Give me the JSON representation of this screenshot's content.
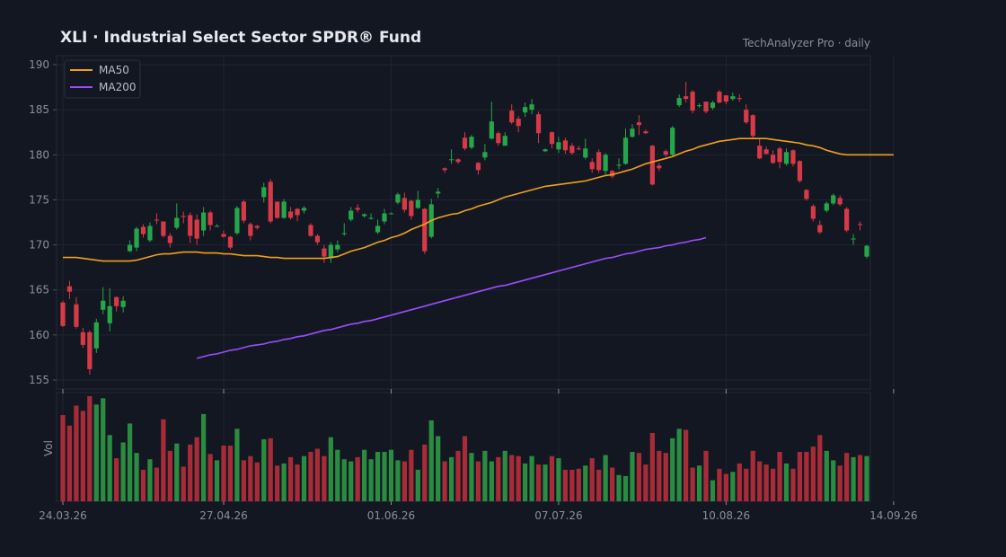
{
  "header": {
    "title": "XLI  ·  Industrial Select Sector SPDR® Fund",
    "brand": "TechAnalyzer Pro · daily"
  },
  "colors": {
    "background": "#131722",
    "grid": "#1f2430",
    "up": "#26a64a",
    "down": "#d63a47",
    "ma50": "#f0a020",
    "ma200": "#9b4dff",
    "axis_text": "#8a8f9c"
  },
  "chart_data": {
    "type": "candlestick",
    "title": "XLI  ·  Industrial Select Sector SPDR® Fund",
    "y_ticks": [
      155,
      160,
      165,
      170,
      175,
      180,
      185,
      190
    ],
    "ylim": [
      154,
      191
    ],
    "ylabel_volume": "Vol",
    "x_ticks": [
      {
        "label": "24.03.26",
        "index": 0
      },
      {
        "label": "27.04.26",
        "index": 24
      },
      {
        "label": "01.06.26",
        "index": 49
      },
      {
        "label": "07.07.26",
        "index": 74
      },
      {
        "label": "10.08.26",
        "index": 99
      },
      {
        "label": "14.09.26",
        "index": 124
      }
    ],
    "legend": {
      "placement": "top-left",
      "entries": [
        "MA50",
        "MA200"
      ]
    },
    "candles": [
      [
        163.6,
        161.0,
        163.8,
        160.9,
        0.82
      ],
      [
        165.4,
        164.8,
        166.0,
        164.0,
        0.72
      ],
      [
        163.4,
        160.9,
        164.2,
        160.7,
        0.91
      ],
      [
        160.3,
        158.9,
        160.8,
        158.6,
        0.86
      ],
      [
        160.3,
        156.2,
        160.5,
        155.6,
        1.0
      ],
      [
        158.5,
        161.4,
        161.8,
        158.0,
        0.92
      ],
      [
        162.8,
        163.8,
        165.3,
        162.3,
        0.98
      ],
      [
        161.3,
        163.2,
        165.2,
        160.4,
        0.63
      ],
      [
        164.2,
        163.2,
        164.3,
        162.6,
        0.41
      ],
      [
        163.1,
        163.8,
        164.3,
        162.5,
        0.56
      ],
      [
        169.3,
        170.0,
        170.5,
        169.2,
        0.74
      ],
      [
        169.7,
        171.8,
        172.0,
        169.3,
        0.46
      ],
      [
        172.0,
        171.2,
        172.3,
        170.8,
        0.3
      ],
      [
        170.5,
        172.1,
        172.5,
        170.3,
        0.4
      ],
      [
        172.8,
        172.7,
        173.5,
        172.3,
        0.32
      ],
      [
        172.6,
        171.0,
        172.6,
        170.8,
        0.78
      ],
      [
        171.0,
        170.2,
        171.3,
        169.7,
        0.48
      ],
      [
        171.9,
        173.0,
        174.6,
        171.7,
        0.55
      ],
      [
        173.2,
        173.1,
        173.7,
        172.4,
        0.33
      ],
      [
        173.3,
        171.0,
        173.6,
        170.2,
        0.54
      ],
      [
        172.8,
        170.7,
        173.4,
        170.0,
        0.61
      ],
      [
        171.6,
        173.6,
        174.2,
        171.0,
        0.83
      ],
      [
        173.6,
        172.2,
        173.8,
        171.6,
        0.45
      ],
      [
        172.1,
        172.1,
        172.3,
        172.0,
        0.39
      ],
      [
        171.2,
        170.9,
        171.6,
        170.8,
        0.53
      ],
      [
        170.9,
        169.7,
        171.0,
        169.5,
        0.53
      ],
      [
        171.3,
        174.1,
        174.3,
        171.1,
        0.69
      ],
      [
        174.8,
        172.7,
        175.0,
        172.4,
        0.39
      ],
      [
        172.3,
        171.0,
        172.5,
        170.5,
        0.43
      ],
      [
        172.1,
        171.9,
        172.2,
        171.7,
        0.37
      ],
      [
        175.3,
        176.4,
        176.9,
        174.7,
        0.59
      ],
      [
        177.0,
        172.6,
        177.3,
        172.4,
        0.6
      ],
      [
        174.8,
        173.0,
        174.8,
        172.9,
        0.34
      ],
      [
        173.0,
        174.8,
        175.1,
        172.9,
        0.36
      ],
      [
        173.7,
        173.0,
        174.2,
        172.8,
        0.42
      ],
      [
        174.0,
        173.3,
        174.1,
        172.6,
        0.35
      ],
      [
        173.8,
        174.1,
        174.3,
        173.5,
        0.43
      ],
      [
        172.2,
        171.0,
        172.4,
        170.9,
        0.47
      ],
      [
        171.0,
        170.3,
        171.2,
        170.0,
        0.5
      ],
      [
        169.6,
        168.7,
        170.0,
        168.0,
        0.43
      ],
      [
        168.5,
        170.0,
        170.3,
        168.0,
        0.61
      ],
      [
        169.5,
        170.0,
        170.5,
        169.2,
        0.49
      ],
      [
        171.3,
        171.3,
        172.4,
        171.0,
        0.4
      ],
      [
        172.8,
        173.8,
        174.2,
        172.6,
        0.38
      ],
      [
        174.1,
        173.9,
        174.5,
        173.6,
        0.42
      ],
      [
        173.2,
        173.4,
        173.5,
        173.0,
        0.49
      ],
      [
        172.9,
        173.0,
        173.5,
        172.8,
        0.4
      ],
      [
        171.4,
        172.1,
        172.8,
        171.2,
        0.47
      ],
      [
        172.6,
        173.5,
        174.0,
        172.3,
        0.47
      ],
      [
        173.5,
        173.5,
        173.6,
        173.4,
        0.49
      ],
      [
        174.7,
        175.6,
        175.8,
        174.5,
        0.39
      ],
      [
        175.2,
        173.9,
        175.8,
        173.6,
        0.38
      ],
      [
        174.9,
        173.2,
        175.0,
        172.8,
        0.49
      ],
      [
        174.1,
        175.0,
        176.0,
        174.0,
        0.3
      ],
      [
        174.0,
        169.3,
        174.1,
        169.0,
        0.54
      ],
      [
        170.9,
        174.5,
        175.1,
        170.7,
        0.77
      ],
      [
        175.7,
        175.9,
        176.3,
        175.2,
        0.62
      ],
      [
        178.5,
        178.3,
        178.6,
        178.0,
        0.38
      ],
      [
        179.4,
        179.5,
        180.6,
        179.0,
        0.42
      ],
      [
        179.5,
        179.2,
        179.6,
        179.0,
        0.48
      ],
      [
        181.9,
        180.7,
        182.5,
        180.5,
        0.62
      ],
      [
        180.8,
        182.0,
        182.2,
        180.6,
        0.46
      ],
      [
        179.1,
        178.3,
        179.2,
        177.8,
        0.38
      ],
      [
        179.7,
        180.3,
        181.2,
        179.4,
        0.48
      ],
      [
        181.8,
        183.7,
        185.9,
        181.7,
        0.38
      ],
      [
        182.4,
        181.3,
        182.6,
        181.0,
        0.42
      ],
      [
        181.0,
        182.1,
        182.5,
        181.2,
        0.48
      ],
      [
        184.9,
        183.6,
        185.6,
        183.4,
        0.44
      ],
      [
        184.0,
        183.2,
        184.3,
        182.5,
        0.43
      ],
      [
        184.7,
        185.3,
        185.8,
        184.2,
        0.36
      ],
      [
        185.0,
        185.6,
        186.2,
        184.5,
        0.43
      ],
      [
        184.5,
        182.4,
        184.8,
        181.3,
        0.35
      ],
      [
        180.4,
        180.6,
        180.7,
        180.3,
        0.35
      ],
      [
        182.5,
        181.2,
        182.6,
        180.7,
        0.43
      ],
      [
        180.6,
        181.4,
        182.0,
        180.2,
        0.41
      ],
      [
        181.6,
        180.5,
        181.9,
        180.1,
        0.3
      ],
      [
        181.0,
        180.2,
        181.3,
        180.0,
        0.3
      ],
      [
        180.7,
        180.6,
        181.0,
        180.5,
        0.31
      ],
      [
        179.7,
        180.7,
        181.8,
        179.5,
        0.34
      ],
      [
        179.2,
        178.4,
        179.6,
        178.0,
        0.41
      ],
      [
        180.3,
        178.3,
        180.6,
        178.0,
        0.3
      ],
      [
        178.2,
        180.0,
        180.2,
        177.8,
        0.44
      ],
      [
        178.2,
        177.6,
        178.3,
        177.4,
        0.32
      ],
      [
        178.8,
        178.9,
        179.6,
        178.4,
        0.25
      ],
      [
        179.0,
        181.9,
        182.9,
        178.9,
        0.24
      ],
      [
        182.0,
        182.9,
        183.4,
        181.9,
        0.47
      ],
      [
        183.6,
        183.3,
        184.4,
        182.2,
        0.46
      ],
      [
        182.6,
        182.4,
        182.8,
        182.3,
        0.35
      ],
      [
        181.0,
        176.7,
        181.1,
        176.6,
        0.65
      ],
      [
        178.8,
        178.5,
        179.1,
        178.2,
        0.48
      ],
      [
        180.4,
        180.0,
        180.6,
        179.8,
        0.46
      ],
      [
        180.0,
        183.0,
        183.2,
        179.8,
        0.6
      ],
      [
        185.5,
        186.3,
        186.7,
        185.3,
        0.69
      ],
      [
        186.5,
        186.2,
        188.1,
        185.8,
        0.68
      ],
      [
        187.0,
        184.9,
        187.2,
        184.6,
        0.32
      ],
      [
        185.4,
        185.5,
        185.7,
        185.2,
        0.34
      ],
      [
        185.9,
        184.8,
        185.8,
        184.6,
        0.48
      ],
      [
        185.2,
        185.8,
        186.0,
        185.0,
        0.2
      ],
      [
        187.0,
        185.8,
        187.2,
        185.7,
        0.31
      ],
      [
        186.6,
        185.9,
        186.6,
        185.6,
        0.26
      ],
      [
        186.2,
        186.5,
        186.9,
        186.0,
        0.28
      ],
      [
        186.3,
        186.2,
        186.7,
        185.9,
        0.36
      ],
      [
        185.0,
        183.6,
        185.6,
        183.4,
        0.31
      ],
      [
        184.4,
        182.1,
        184.5,
        181.8,
        0.48
      ],
      [
        181.0,
        179.6,
        181.8,
        179.5,
        0.38
      ],
      [
        180.6,
        180.1,
        180.9,
        180.0,
        0.35
      ],
      [
        180.0,
        179.1,
        180.5,
        179.0,
        0.31
      ],
      [
        180.7,
        179.2,
        180.9,
        178.5,
        0.47
      ],
      [
        179.0,
        180.3,
        180.7,
        178.8,
        0.36
      ],
      [
        180.5,
        179.0,
        180.6,
        178.7,
        0.31
      ],
      [
        179.3,
        177.1,
        179.4,
        176.9,
        0.47
      ],
      [
        176.1,
        175.1,
        176.2,
        174.9,
        0.47
      ],
      [
        174.3,
        172.9,
        174.5,
        172.6,
        0.52
      ],
      [
        172.2,
        171.4,
        172.7,
        171.2,
        0.63
      ],
      [
        173.8,
        174.6,
        174.8,
        173.6,
        0.48
      ],
      [
        174.6,
        175.5,
        175.7,
        174.4,
        0.39
      ],
      [
        175.2,
        174.5,
        175.5,
        174.3,
        0.34
      ],
      [
        174.0,
        171.6,
        174.2,
        171.4,
        0.46
      ],
      [
        170.7,
        170.7,
        171.2,
        170.0,
        0.42
      ],
      [
        172.3,
        172.2,
        172.6,
        171.6,
        0.44
      ],
      [
        168.7,
        169.9,
        170.0,
        168.5,
        0.43
      ]
    ],
    "ma50": [
      168.6,
      168.6,
      168.6,
      168.5,
      168.4,
      168.3,
      168.2,
      168.2,
      168.2,
      168.2,
      168.2,
      168.3,
      168.5,
      168.7,
      168.9,
      169.0,
      169.0,
      169.1,
      169.2,
      169.2,
      169.2,
      169.1,
      169.1,
      169.1,
      169.0,
      169.0,
      168.9,
      168.8,
      168.8,
      168.8,
      168.7,
      168.6,
      168.6,
      168.5,
      168.5,
      168.5,
      168.5,
      168.5,
      168.5,
      168.5,
      168.6,
      168.7,
      169.0,
      169.3,
      169.5,
      169.7,
      170.0,
      170.3,
      170.5,
      170.8,
      171.0,
      171.3,
      171.7,
      172.0,
      172.3,
      172.7,
      173.0,
      173.2,
      173.4,
      173.5,
      173.8,
      174.0,
      174.3,
      174.5,
      174.7,
      175.0,
      175.3,
      175.5,
      175.7,
      175.9,
      176.1,
      176.3,
      176.5,
      176.6,
      176.7,
      176.8,
      176.9,
      177.0,
      177.1,
      177.3,
      177.5,
      177.7,
      177.8,
      178.0,
      178.2,
      178.4,
      178.7,
      179.0,
      179.2,
      179.4,
      179.6,
      179.8,
      180.1,
      180.4,
      180.6,
      180.9,
      181.1,
      181.3,
      181.5,
      181.6,
      181.7,
      181.8,
      181.8,
      181.8,
      181.8,
      181.8,
      181.7,
      181.6,
      181.5,
      181.4,
      181.3,
      181.1,
      181.0,
      180.8,
      180.5,
      180.3,
      180.1,
      180.0,
      180.0,
      180.0,
      180.0,
      180.0,
      180.0,
      180.0,
      180.0
    ],
    "ma200_start_index": 20,
    "ma200": [
      157.4,
      157.6,
      157.8,
      157.9,
      158.1,
      158.3,
      158.4,
      158.6,
      158.8,
      158.9,
      159.0,
      159.2,
      159.3,
      159.5,
      159.6,
      159.8,
      159.9,
      160.1,
      160.3,
      160.5,
      160.6,
      160.8,
      161.0,
      161.2,
      161.3,
      161.5,
      161.6,
      161.8,
      162.0,
      162.2,
      162.4,
      162.6,
      162.8,
      163.0,
      163.2,
      163.4,
      163.6,
      163.8,
      164.0,
      164.2,
      164.4,
      164.6,
      164.8,
      165.0,
      165.2,
      165.4,
      165.5,
      165.7,
      165.9,
      166.1,
      166.3,
      166.5,
      166.7,
      166.9,
      167.1,
      167.3,
      167.5,
      167.7,
      167.9,
      168.1,
      168.3,
      168.5,
      168.6,
      168.8,
      169.0,
      169.1,
      169.3,
      169.5,
      169.6,
      169.7,
      169.9,
      170.0,
      170.2,
      170.3,
      170.5,
      170.6,
      170.8
    ]
  }
}
